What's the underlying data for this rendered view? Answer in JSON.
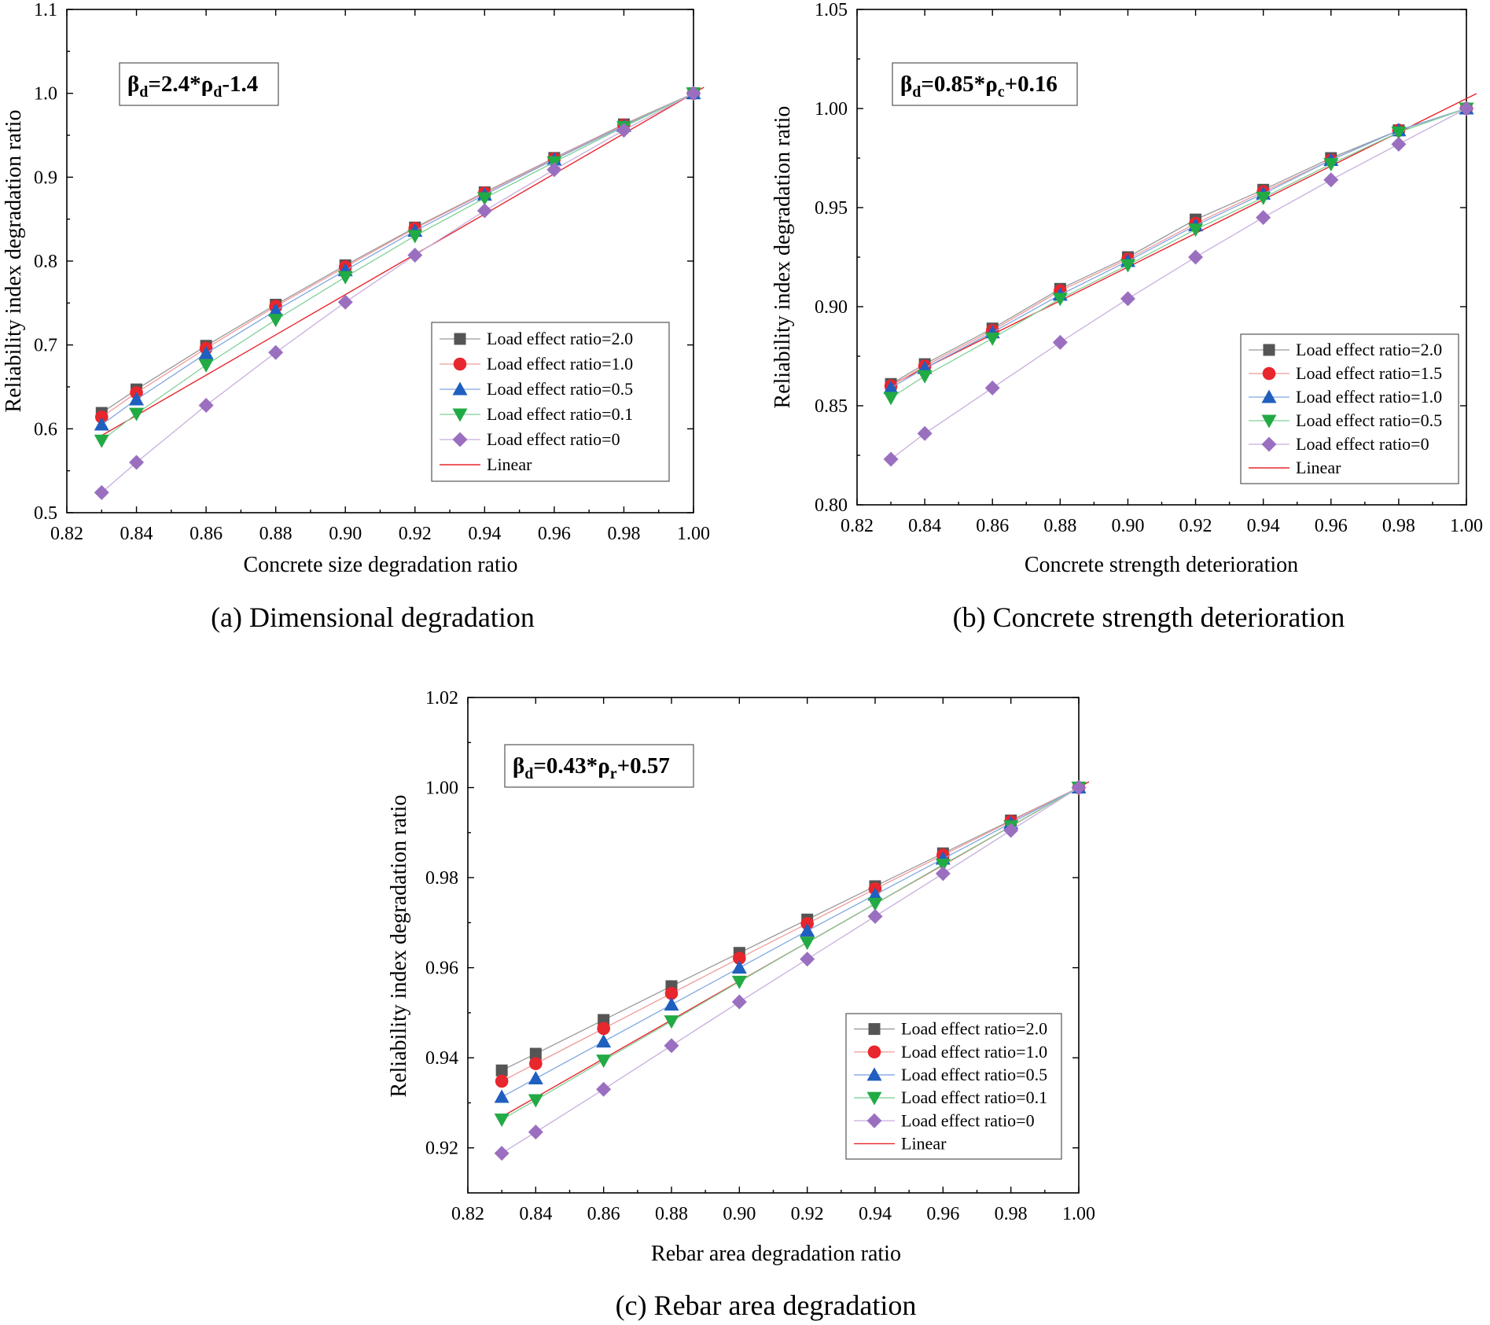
{
  "colors": {
    "r2.0": "#555555",
    "r1.5": "#e8262d",
    "r1.0": "#e8262d",
    "r0.5": "#1f5fbf",
    "r0.1": "#22aa44",
    "r0": "#9b6fc0",
    "linear": "#e8262d",
    "line_light": {
      "r2.0": "#9a9a9a",
      "r1.5": "#f09a9a",
      "r1.0": "#f09a9a",
      "r0.5": "#7fa8e0",
      "r0.1": "#82d09a",
      "r0": "#c8aede"
    }
  },
  "chart_data": [
    {
      "id": "a",
      "type": "line",
      "caption": "(a) Dimensional degradation",
      "xlabel": "Concrete size degradation ratio",
      "ylabel": "Reliability index degradation ratio",
      "xlim": [
        0.82,
        1.0
      ],
      "ylim": [
        0.5,
        1.1
      ],
      "xticks": [
        "0.82",
        "0.84",
        "0.86",
        "0.88",
        "0.90",
        "0.92",
        "0.94",
        "0.96",
        "0.98",
        "1.00"
      ],
      "yticks": [
        "0.5",
        "0.6",
        "0.7",
        "0.8",
        "0.9",
        "1.0",
        "1.1"
      ],
      "equation": {
        "lhs": "β",
        "lhs_sub": "d",
        "op": "=2.4*",
        "var": "ρ",
        "var_sub": "d",
        "rest": "-1.4"
      },
      "x": [
        0.83,
        0.84,
        0.86,
        0.88,
        0.9,
        0.92,
        0.94,
        0.96,
        0.98,
        1.0
      ],
      "series": [
        {
          "name": "Load effect ratio=2.0",
          "marker": "square",
          "colorKey": "r2.0",
          "values": [
            0.619,
            0.647,
            0.699,
            0.748,
            0.795,
            0.84,
            0.882,
            0.923,
            0.963,
            1.0
          ]
        },
        {
          "name": "Load effect ratio=1.0",
          "marker": "circle",
          "colorKey": "r1.0",
          "values": [
            0.614,
            0.643,
            0.696,
            0.746,
            0.793,
            0.839,
            0.881,
            0.922,
            0.962,
            1.0
          ]
        },
        {
          "name": "Load effect ratio=0.5",
          "marker": "triangle-up",
          "colorKey": "r0.5",
          "values": [
            0.605,
            0.635,
            0.69,
            0.741,
            0.789,
            0.836,
            0.879,
            0.921,
            0.961,
            1.0
          ]
        },
        {
          "name": "Load effect ratio=0.1",
          "marker": "triangle-down",
          "colorKey": "r0.1",
          "values": [
            0.586,
            0.618,
            0.676,
            0.73,
            0.781,
            0.83,
            0.875,
            0.918,
            0.96,
            1.0
          ]
        },
        {
          "name": "Load effect ratio=0",
          "marker": "diamond",
          "colorKey": "r0",
          "values": [
            0.524,
            0.56,
            0.628,
            0.691,
            0.751,
            0.807,
            0.86,
            0.909,
            0.956,
            1.0
          ]
        }
      ],
      "linear": {
        "name": "Linear",
        "colorKey": "linear",
        "slope": 2.4,
        "intercept": -1.4,
        "x_range": [
          0.83,
          1.0
        ]
      },
      "legend_position": "lower-right"
    },
    {
      "id": "b",
      "type": "line",
      "caption": "(b) Concrete strength deterioration",
      "xlabel": "Concrete strength deterioration",
      "ylabel": "Reliability index degradation ratio",
      "xlim": [
        0.82,
        1.0
      ],
      "ylim": [
        0.8,
        1.05
      ],
      "xticks": [
        "0.82",
        "0.84",
        "0.86",
        "0.88",
        "0.90",
        "0.92",
        "0.94",
        "0.96",
        "0.98",
        "1.00"
      ],
      "yticks": [
        "0.80",
        "0.85",
        "0.90",
        "0.95",
        "1.00",
        "1.05"
      ],
      "equation": {
        "lhs": "β",
        "lhs_sub": "d",
        "op": "=0.85*",
        "var": "ρ",
        "var_sub": "c",
        "rest": "+0.16"
      },
      "x": [
        0.83,
        0.84,
        0.86,
        0.88,
        0.9,
        0.92,
        0.94,
        0.96,
        0.98,
        1.0
      ],
      "series": [
        {
          "name": "Load effect ratio=2.0",
          "marker": "square",
          "colorKey": "r2.0",
          "values": [
            0.861,
            0.871,
            0.889,
            0.909,
            0.925,
            0.944,
            0.959,
            0.975,
            0.989,
            1.0
          ]
        },
        {
          "name": "Load effect ratio=1.5",
          "marker": "circle",
          "colorKey": "r1.5",
          "values": [
            0.86,
            0.87,
            0.888,
            0.908,
            0.924,
            0.942,
            0.958,
            0.974,
            0.989,
            1.0
          ]
        },
        {
          "name": "Load effect ratio=1.0",
          "marker": "triangle-up",
          "colorKey": "r1.0",
          "values": [
            0.859,
            0.869,
            0.887,
            0.906,
            0.923,
            0.941,
            0.957,
            0.974,
            0.989,
            1.0
          ]
        },
        {
          "name": "Load effect ratio=0.5",
          "marker": "triangle-down",
          "colorKey": "r0.5",
          "values": [
            0.854,
            0.865,
            0.884,
            0.904,
            0.921,
            0.939,
            0.955,
            0.972,
            0.988,
            1.0
          ]
        },
        {
          "name": "Load effect ratio=0",
          "marker": "diamond",
          "colorKey": "r0",
          "values": [
            0.823,
            0.836,
            0.859,
            0.882,
            0.904,
            0.925,
            0.945,
            0.964,
            0.982,
            1.0
          ]
        }
      ],
      "series_color_override": {
        "Load effect ratio=1.5": "r1.5",
        "Load effect ratio=1.0": "r0.5",
        "Load effect ratio=0.5": "r0.1",
        "Load effect ratio=0": "r0"
      },
      "linear": {
        "name": "Linear",
        "colorKey": "linear",
        "slope": 0.85,
        "intercept": 0.155,
        "x_range": [
          0.83,
          1.0
        ]
      },
      "legend_position": "lower-right"
    },
    {
      "id": "c",
      "type": "line",
      "caption": "(c) Rebar area degradation",
      "xlabel": "Rebar area degradation ratio",
      "ylabel": "Reliability index degradation ratio",
      "xlim": [
        0.82,
        1.0
      ],
      "ylim": [
        0.91,
        1.02
      ],
      "xticks": [
        "0.82",
        "0.84",
        "0.86",
        "0.88",
        "0.90",
        "0.92",
        "0.94",
        "0.96",
        "0.98",
        "1.00"
      ],
      "yticks": [
        "0.92",
        "0.94",
        "0.96",
        "0.98",
        "1.00",
        "1.02"
      ],
      "equation": {
        "lhs": "β",
        "lhs_sub": "d",
        "op": "=0.43*",
        "var": "ρ",
        "var_sub": "r",
        "rest": "+0.57"
      },
      "x": [
        0.83,
        0.84,
        0.86,
        0.88,
        0.9,
        0.92,
        0.94,
        0.96,
        0.98,
        1.0
      ],
      "series": [
        {
          "name": "Load effect ratio=2.0",
          "marker": "square",
          "colorKey": "r2.0",
          "values": [
            0.9372,
            0.9409,
            0.9484,
            0.9559,
            0.9633,
            0.9707,
            0.9781,
            0.9854,
            0.9927,
            1.0
          ]
        },
        {
          "name": "Load effect ratio=1.0",
          "marker": "circle",
          "colorKey": "r1.0",
          "values": [
            0.9348,
            0.9387,
            0.9465,
            0.9543,
            0.9621,
            0.9698,
            0.9775,
            0.985,
            0.9925,
            1.0
          ]
        },
        {
          "name": "Load effect ratio=0.5",
          "marker": "triangle-up",
          "colorKey": "r0.5",
          "values": [
            0.9313,
            0.9354,
            0.9436,
            0.9518,
            0.96,
            0.9682,
            0.9762,
            0.9842,
            0.9921,
            1.0
          ]
        },
        {
          "name": "Load effect ratio=0.1",
          "marker": "triangle-down",
          "colorKey": "r0.1",
          "values": [
            0.9263,
            0.9306,
            0.9394,
            0.9481,
            0.9569,
            0.9656,
            0.9742,
            0.9829,
            0.9914,
            1.0
          ]
        },
        {
          "name": "Load effect ratio=0",
          "marker": "diamond",
          "colorKey": "r0",
          "values": [
            0.9188,
            0.9235,
            0.933,
            0.9427,
            0.9524,
            0.9619,
            0.9714,
            0.9809,
            0.9905,
            1.0
          ]
        }
      ],
      "linear": {
        "name": "Linear",
        "colorKey": "linear",
        "slope": 0.43,
        "intercept": 0.57,
        "x_range": [
          0.83,
          1.0
        ]
      },
      "legend_position": "lower-right"
    }
  ]
}
